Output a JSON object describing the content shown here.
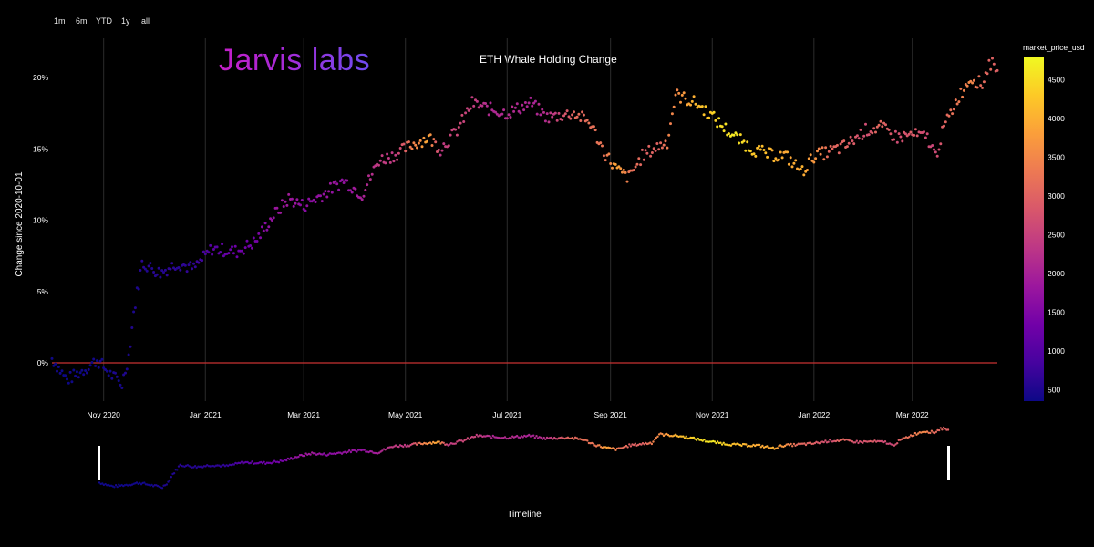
{
  "range_selector": [
    "1m",
    "6m",
    "YTD",
    "1y",
    "all"
  ],
  "logo_text": "Jarvis labs",
  "chart_data": {
    "type": "scatter",
    "title": "ETH Whale Holding Change",
    "xlabel": "Timeline",
    "ylabel": "Change since 2020-10-01",
    "x_ticks": [
      "Nov 2020",
      "Jan 2021",
      "Mar 2021",
      "May 2021",
      "Jul 2021",
      "Sep 2021",
      "Nov 2021",
      "Jan 2022",
      "Mar 2022"
    ],
    "x_range": [
      "2020-10-01",
      "2022-04-21"
    ],
    "y_ticks": [
      "0%",
      "5%",
      "10%",
      "15%",
      "20%"
    ],
    "ylim": [
      -3,
      22.5
    ],
    "grid": true,
    "colorbar": {
      "title": "market_price_usd",
      "range": [
        350,
        4800
      ],
      "ticks": [
        500,
        1000,
        1500,
        2000,
        2500,
        3000,
        3500,
        4000,
        4500
      ],
      "colorscale": [
        "#0d0887",
        "#46039f",
        "#7201a8",
        "#9c179e",
        "#bd3786",
        "#d8576b",
        "#ed7953",
        "#fb9f3a",
        "#fdca26",
        "#f0f921"
      ]
    },
    "series": [
      {
        "anchors": [
          [
            "2020-10-01",
            0.3,
            360
          ],
          [
            "2020-10-10",
            -1.2,
            370
          ],
          [
            "2020-10-20",
            -0.5,
            385
          ],
          [
            "2020-10-28",
            0.2,
            390
          ],
          [
            "2020-11-05",
            -0.8,
            420
          ],
          [
            "2020-11-12",
            -1.5,
            460
          ],
          [
            "2020-11-16",
            0.5,
            470
          ],
          [
            "2020-11-19",
            3.5,
            480
          ],
          [
            "2020-11-24",
            7.0,
            560
          ],
          [
            "2020-12-05",
            6.3,
            600
          ],
          [
            "2020-12-15",
            7.0,
            600
          ],
          [
            "2020-12-25",
            6.6,
            630
          ],
          [
            "2021-01-05",
            8.0,
            1050
          ],
          [
            "2021-01-20",
            7.8,
            1300
          ],
          [
            "2021-01-31",
            8.5,
            1400
          ],
          [
            "2021-02-10",
            10.2,
            1750
          ],
          [
            "2021-02-20",
            11.5,
            1900
          ],
          [
            "2021-03-01",
            11.0,
            1600
          ],
          [
            "2021-03-15",
            12.0,
            1800
          ],
          [
            "2021-03-25",
            12.8,
            1700
          ],
          [
            "2021-04-05",
            11.8,
            2000
          ],
          [
            "2021-04-15",
            14.2,
            2400
          ],
          [
            "2021-04-25",
            14.6,
            2400
          ],
          [
            "2021-05-05",
            15.3,
            3400
          ],
          [
            "2021-05-15",
            15.8,
            3900
          ],
          [
            "2021-05-22",
            15.0,
            2400
          ],
          [
            "2021-06-01",
            16.3,
            2600
          ],
          [
            "2021-06-10",
            18.2,
            2500
          ],
          [
            "2021-06-20",
            17.8,
            2100
          ],
          [
            "2021-07-01",
            17.5,
            2200
          ],
          [
            "2021-07-15",
            18.2,
            2000
          ],
          [
            "2021-07-25",
            17.2,
            2200
          ],
          [
            "2021-08-10",
            17.5,
            3100
          ],
          [
            "2021-08-20",
            16.8,
            3200
          ],
          [
            "2021-08-28",
            14.8,
            3200
          ],
          [
            "2021-09-05",
            13.5,
            3900
          ],
          [
            "2021-09-12",
            13.0,
            3300
          ],
          [
            "2021-09-20",
            14.5,
            3000
          ],
          [
            "2021-09-30",
            15.2,
            3000
          ],
          [
            "2021-10-05",
            15.5,
            3400
          ],
          [
            "2021-10-10",
            18.8,
            3500
          ],
          [
            "2021-10-22",
            18.2,
            4100
          ],
          [
            "2021-10-30",
            17.5,
            4300
          ],
          [
            "2021-11-05",
            16.8,
            4500
          ],
          [
            "2021-11-15",
            15.8,
            4600
          ],
          [
            "2021-11-25",
            15.0,
            4300
          ],
          [
            "2021-12-05",
            14.6,
            4100
          ],
          [
            "2021-12-15",
            14.5,
            3900
          ],
          [
            "2021-12-25",
            13.4,
            4000
          ],
          [
            "2022-01-01",
            14.5,
            3700
          ],
          [
            "2022-01-10",
            14.8,
            3100
          ],
          [
            "2022-01-20",
            15.2,
            3000
          ],
          [
            "2022-02-01",
            16.3,
            2700
          ],
          [
            "2022-02-10",
            16.5,
            3100
          ],
          [
            "2022-02-20",
            15.8,
            2700
          ],
          [
            "2022-03-01",
            16.0,
            2900
          ],
          [
            "2022-03-10",
            15.8,
            2600
          ],
          [
            "2022-03-15",
            14.5,
            2600
          ],
          [
            "2022-03-20",
            16.5,
            3000
          ],
          [
            "2022-03-28",
            18.5,
            3300
          ],
          [
            "2022-04-05",
            20.0,
            3500
          ],
          [
            "2022-04-12",
            19.5,
            3100
          ],
          [
            "2022-04-16",
            21.0,
            3050
          ],
          [
            "2022-04-21",
            20.8,
            3000
          ]
        ]
      }
    ]
  }
}
